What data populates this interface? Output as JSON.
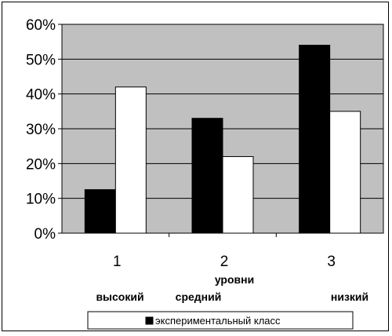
{
  "chart_data": {
    "type": "bar",
    "categories": [
      "1",
      "2",
      "3"
    ],
    "category_sublabels": [
      "высокий",
      "средний",
      "низкий"
    ],
    "group_label": "уровни",
    "series": [
      {
        "name": "экспериментальный класс",
        "values": [
          12.5,
          33,
          54
        ],
        "color": "#000000"
      },
      {
        "name": "",
        "values": [
          42,
          22,
          35
        ],
        "color": "#ffffff"
      }
    ],
    "yticks": [
      "0%",
      "10%",
      "20%",
      "30%",
      "40%",
      "50%",
      "60%"
    ],
    "ylim": [
      0,
      60
    ],
    "grid": true,
    "legend_position": "bottom",
    "plot_background": "#c0c0c0"
  }
}
